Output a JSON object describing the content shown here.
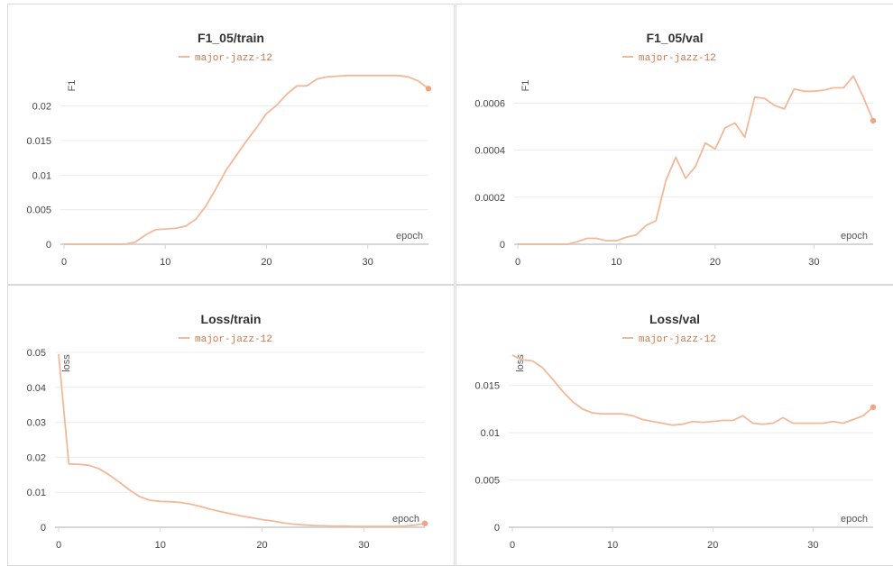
{
  "colors": {
    "series": "#f2b899",
    "endpoint": "#eea586",
    "legend_text": "#d0784a",
    "grid": "#ececec"
  },
  "chart_data": [
    {
      "type": "line",
      "title": "F1_05/train",
      "xlabel": "epoch",
      "ylabel": "F1",
      "xlim": [
        0,
        36
      ],
      "ylim": [
        0,
        0.0245
      ],
      "xticks": [
        0,
        10,
        20,
        30
      ],
      "xtick_labels": [
        "0",
        "10",
        "20",
        "30"
      ],
      "yticks": [
        0,
        0.005,
        0.01,
        0.015,
        0.02
      ],
      "ytick_labels": [
        "0",
        "0.005",
        "0.01",
        "0.015",
        "0.02"
      ],
      "legend": "top-center",
      "series": [
        {
          "name": "major-jazz-12",
          "x": [
            0,
            1,
            2,
            3,
            4,
            5,
            6,
            7,
            8,
            9,
            10,
            11,
            12,
            13,
            14,
            15,
            16,
            17,
            18,
            19,
            20,
            21,
            22,
            23,
            24,
            25,
            26,
            27,
            28,
            29,
            30,
            31,
            32,
            33,
            34,
            35,
            36
          ],
          "y": [
            0,
            0,
            0,
            0,
            0,
            0,
            0,
            0.0003,
            0.0013,
            0.0021,
            0.0022,
            0.0023,
            0.0026,
            0.0036,
            0.0055,
            0.008,
            0.0107,
            0.0128,
            0.0149,
            0.0168,
            0.0189,
            0.0201,
            0.0217,
            0.0229,
            0.0229,
            0.0239,
            0.0242,
            0.0243,
            0.0244,
            0.0244,
            0.0244,
            0.0244,
            0.0244,
            0.0244,
            0.0242,
            0.0236,
            0.0225
          ]
        }
      ]
    },
    {
      "type": "line",
      "title": "F1_05/val",
      "xlabel": "epoch",
      "ylabel": "F1",
      "xlim": [
        0,
        36
      ],
      "ylim": [
        0,
        0.00072
      ],
      "xticks": [
        0,
        10,
        20,
        30
      ],
      "xtick_labels": [
        "0",
        "10",
        "20",
        "30"
      ],
      "yticks": [
        0,
        0.0002,
        0.0004,
        0.0006
      ],
      "ytick_labels": [
        "0",
        "0.0002",
        "0.0004",
        "0.0006"
      ],
      "legend": "top-center",
      "series": [
        {
          "name": "major-jazz-12",
          "x": [
            0,
            1,
            2,
            3,
            4,
            5,
            6,
            7,
            8,
            9,
            10,
            11,
            12,
            13,
            14,
            15,
            16,
            17,
            18,
            19,
            20,
            21,
            22,
            23,
            24,
            25,
            26,
            27,
            28,
            29,
            30,
            31,
            32,
            33,
            34,
            35,
            36
          ],
          "y": [
            0,
            0,
            0,
            0,
            0,
            0,
            1e-05,
            2.5e-05,
            2.5e-05,
            1.5e-05,
            1.5e-05,
            3e-05,
            4e-05,
            8e-05,
            0.0001,
            0.00027,
            0.00037,
            0.00028,
            0.00033,
            0.00043,
            0.000405,
            0.000495,
            0.000515,
            0.000455,
            0.000625,
            0.00062,
            0.00059,
            0.000575,
            0.00066,
            0.00065,
            0.00065,
            0.000655,
            0.000665,
            0.000665,
            0.000715,
            0.000625,
            0.000525
          ]
        }
      ]
    },
    {
      "type": "line",
      "title": "Loss/train",
      "xlabel": "epoch",
      "ylabel": "loss",
      "xlim": [
        0,
        36
      ],
      "ylim": [
        0,
        0.05
      ],
      "xticks": [
        0,
        10,
        20,
        30
      ],
      "xtick_labels": [
        "0",
        "10",
        "20",
        "30"
      ],
      "yticks": [
        0,
        0.01,
        0.02,
        0.03,
        0.04,
        0.05
      ],
      "ytick_labels": [
        "0",
        "0.01",
        "0.02",
        "0.03",
        "0.04",
        "0.05"
      ],
      "legend": "top-center",
      "series": [
        {
          "name": "major-jazz-12",
          "x": [
            0,
            1,
            2,
            3,
            4,
            5,
            6,
            7,
            8,
            9,
            10,
            11,
            12,
            13,
            14,
            15,
            16,
            17,
            18,
            19,
            20,
            21,
            22,
            23,
            24,
            25,
            26,
            27,
            28,
            29,
            30,
            31,
            32,
            33,
            34,
            35,
            36
          ],
          "y": [
            0.0495,
            0.0181,
            0.018,
            0.0177,
            0.0167,
            0.0149,
            0.0128,
            0.0106,
            0.0087,
            0.0077,
            0.0074,
            0.0073,
            0.0071,
            0.0066,
            0.0059,
            0.0051,
            0.0044,
            0.0038,
            0.0032,
            0.0027,
            0.0022,
            0.0018,
            0.0013,
            0.0009,
            0.0007,
            0.0005,
            0.0004,
            0.0003,
            0.0003,
            0.0002,
            0.0002,
            0.0002,
            0.0002,
            0.0002,
            0.0003,
            0.0006,
            0.0011
          ]
        }
      ]
    },
    {
      "type": "line",
      "title": "Loss/val",
      "xlabel": "epoch",
      "ylabel": "loss",
      "xlim": [
        0,
        36
      ],
      "ylim": [
        0,
        0.0185
      ],
      "xticks": [
        0,
        10,
        20,
        30
      ],
      "xtick_labels": [
        "0",
        "10",
        "20",
        "30"
      ],
      "yticks": [
        0,
        0.005,
        0.01,
        0.015
      ],
      "ytick_labels": [
        "0",
        "0.005",
        "0.01",
        "0.015"
      ],
      "legend": "top-center",
      "series": [
        {
          "name": "major-jazz-12",
          "x": [
            0,
            1,
            2,
            3,
            4,
            5,
            6,
            7,
            8,
            9,
            10,
            11,
            12,
            13,
            14,
            15,
            16,
            17,
            18,
            19,
            20,
            21,
            22,
            23,
            24,
            25,
            26,
            27,
            28,
            29,
            30,
            31,
            32,
            33,
            34,
            35,
            36
          ],
          "y": [
            0.0182,
            0.0177,
            0.0176,
            0.0169,
            0.0157,
            0.0144,
            0.0133,
            0.0125,
            0.0121,
            0.012,
            0.012,
            0.012,
            0.0118,
            0.0114,
            0.0112,
            0.011,
            0.0108,
            0.0109,
            0.0112,
            0.0111,
            0.0112,
            0.0113,
            0.0113,
            0.0118,
            0.011,
            0.0109,
            0.011,
            0.0116,
            0.011,
            0.011,
            0.011,
            0.011,
            0.0112,
            0.011,
            0.0114,
            0.0118,
            0.0127
          ]
        }
      ]
    }
  ]
}
